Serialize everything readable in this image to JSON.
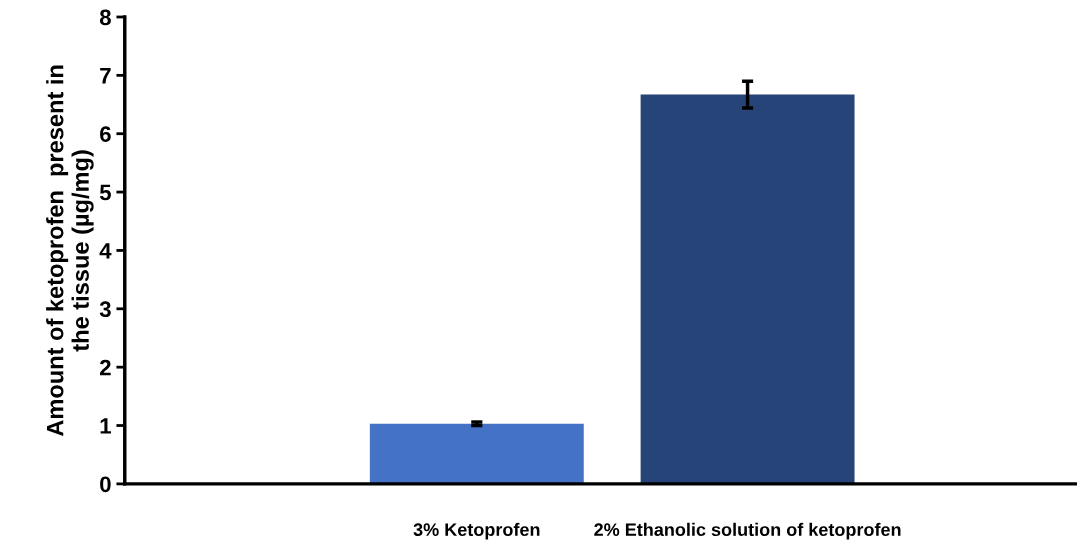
{
  "chart_data": {
    "type": "bar",
    "ylabel": "Amount of ketoprofen  present in\nthe tissue (µg/mg)",
    "categories": [
      "3% Ketoprofen",
      "2% Ethanolic solution of ketoprofen"
    ],
    "values": [
      1.03,
      6.67
    ],
    "errors": [
      0.03,
      0.23
    ],
    "colors": [
      "#4472c4",
      "#264478"
    ],
    "ylim": [
      0,
      8
    ],
    "yticks": [
      0,
      1,
      2,
      3,
      4,
      5,
      6,
      7,
      8
    ],
    "grid": false,
    "legend": false
  }
}
